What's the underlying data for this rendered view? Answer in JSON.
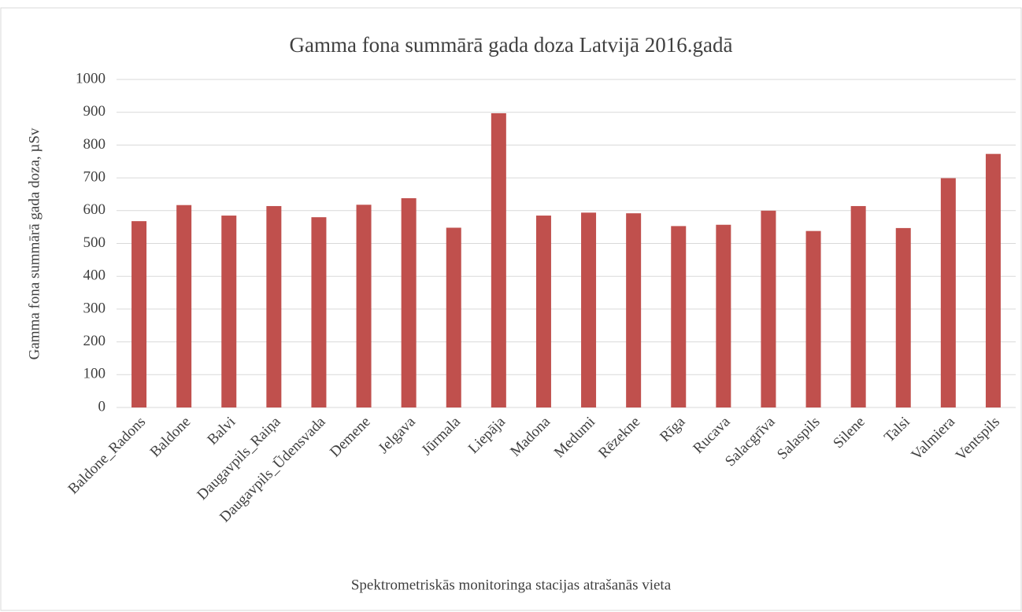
{
  "chart_data": {
    "type": "bar",
    "title": "Gamma fona summārā gada doza Latvijā 2016.gadā",
    "x_label": "Spektrometriskās monitoringa stacijas atrašanās vieta",
    "y_label": "Gamma fona summārā gada doza, µSv",
    "categories": [
      "Baldone_Radons",
      "Baldone",
      "Balvi",
      "Daugavpils_Raiņa",
      "Daugavpils_Ūdensvada",
      "Demene",
      "Jelgava",
      "Jūrmala",
      "Liepāja",
      "Madona",
      "Medumi",
      "Rēzekne",
      "Rīga",
      "Rucava",
      "Salacgrīva",
      "Salaspils",
      "Silene",
      "Talsi",
      "Valmiera",
      "Ventspils"
    ],
    "values": [
      568,
      617,
      585,
      614,
      580,
      618,
      638,
      548,
      897,
      585,
      594,
      592,
      553,
      557,
      600,
      538,
      614,
      547,
      699,
      773
    ],
    "color": "#c0504d",
    "ylim": [
      0,
      1000
    ],
    "yticks": [
      0,
      100,
      200,
      300,
      400,
      500,
      600,
      700,
      800,
      900,
      1000
    ],
    "grid": true
  }
}
